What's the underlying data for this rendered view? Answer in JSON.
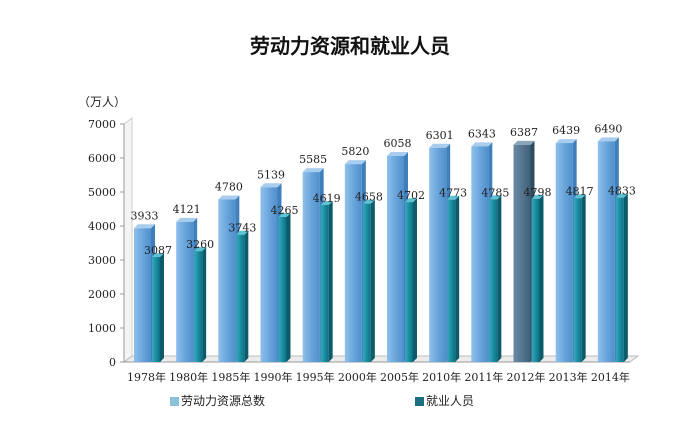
{
  "chart_data": {
    "type": "bar",
    "title": "劳动力资源和就业人员",
    "unit": "（万人）",
    "categories": [
      "1978年",
      "1980年",
      "1985年",
      "1990年",
      "1995年",
      "2000年",
      "2005年",
      "2010年",
      "2011年",
      "2012年",
      "2013年",
      "2014年"
    ],
    "series": [
      {
        "name": "劳动力资源总数",
        "values": [
          3933,
          4121,
          4780,
          5139,
          5585,
          5820,
          6058,
          6301,
          6343,
          6387,
          6439,
          6490
        ],
        "color": "#6aa6dc"
      },
      {
        "name": "就业人员",
        "values": [
          3087,
          3260,
          3743,
          4265,
          4619,
          4658,
          4702,
          4773,
          4785,
          4798,
          4817,
          4833
        ],
        "color": "#1b8ea3"
      }
    ],
    "ylim": [
      0,
      7000
    ],
    "yticks": [
      0,
      1000,
      2000,
      3000,
      4000,
      5000,
      6000,
      7000
    ],
    "highlight_color": "#4e7189",
    "highlight_category": "2012年",
    "legend_position": "bottom"
  }
}
